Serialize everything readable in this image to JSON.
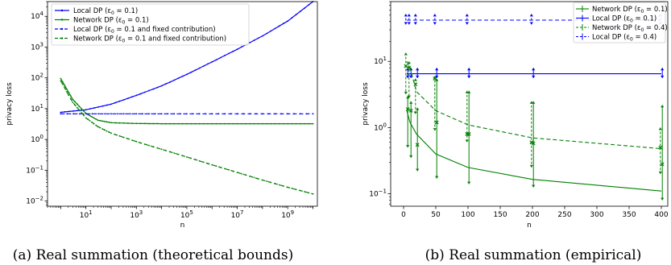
{
  "chart_data": [
    {
      "type": "line",
      "caption": "(a) Real summation (theoretical bounds)",
      "xlabel": "n",
      "ylabel": "privacy loss",
      "xscale": "log",
      "yscale": "log",
      "xlim": [
        0.3,
        15000000000.0
      ],
      "ylim": [
        0.0068,
        30000
      ],
      "xticks": [
        {
          "v": 10,
          "base": "10",
          "exp": "1"
        },
        {
          "v": 1000,
          "base": "10",
          "exp": "3"
        },
        {
          "v": 100000,
          "base": "10",
          "exp": "5"
        },
        {
          "v": 10000000,
          "base": "10",
          "exp": "7"
        },
        {
          "v": 1000000000,
          "base": "10",
          "exp": "9"
        }
      ],
      "yticks": [
        {
          "v": 0.01,
          "base": "10",
          "exp": "−2"
        },
        {
          "v": 0.1,
          "base": "10",
          "exp": "−1"
        },
        {
          "v": 1,
          "base": "10",
          "exp": "0"
        },
        {
          "v": 10,
          "base": "10",
          "exp": "1"
        },
        {
          "v": 100,
          "base": "10",
          "exp": "2"
        },
        {
          "v": 1000,
          "base": "10",
          "exp": "3"
        },
        {
          "v": 10000,
          "base": "10",
          "exp": "4"
        }
      ],
      "legend_position": "top-left",
      "series": [
        {
          "name": "Local DP (ε₀ = 0.1)",
          "color": "#0000ff",
          "style": "solid",
          "marker": "dot",
          "x": [
            1,
            10,
            100,
            1000,
            10000,
            100000,
            1000000,
            10000000,
            100000000,
            1000000000,
            10000000000
          ],
          "y": [
            7.6,
            9.2,
            14,
            27,
            55,
            130,
            330,
            850,
            2300,
            7000,
            30000
          ]
        },
        {
          "name": "Network DP (ε₀ = 0.1)",
          "color": "#008000",
          "style": "solid",
          "marker": "dot",
          "x": [
            1,
            3,
            10,
            30,
            100,
            1000,
            10000,
            100000,
            1000000,
            10000000,
            100000000,
            1000000000,
            10000000000
          ],
          "y": [
            95,
            20,
            7,
            4.2,
            3.5,
            3.3,
            3.25,
            3.25,
            3.25,
            3.25,
            3.25,
            3.25,
            3.25
          ]
        },
        {
          "name": "Local DP (ε₀ = 0.1 and fixed contribution)",
          "color": "#0000ff",
          "style": "dashed",
          "marker": "dot",
          "x": [
            1,
            10000000000
          ],
          "y": [
            6.8,
            6.8
          ]
        },
        {
          "name": "Network DP (ε₀ = 0.1 and fixed contribution)",
          "color": "#008000",
          "style": "dashed",
          "marker": "dot",
          "x": [
            1,
            3,
            10,
            30,
            100,
            1000,
            10000,
            100000,
            1000000,
            10000000,
            100000000,
            1000000000,
            10000000000
          ],
          "y": [
            80,
            16,
            5,
            2.6,
            1.6,
            0.85,
            0.48,
            0.27,
            0.15,
            0.085,
            0.048,
            0.028,
            0.017
          ]
        }
      ]
    },
    {
      "type": "line",
      "caption": "(b) Real summation (empirical)",
      "xlabel": "n",
      "ylabel": "privacy loss",
      "xscale": "linear",
      "yscale": "log",
      "xlim": [
        -20,
        410
      ],
      "ylim": [
        0.065,
        80
      ],
      "xticks": [
        "0",
        "50",
        "100",
        "150",
        "200",
        "250",
        "300",
        "350",
        "400"
      ],
      "yticks": [
        {
          "v": 0.1,
          "base": "10",
          "exp": "−1"
        },
        {
          "v": 1,
          "base": "10",
          "exp": "0"
        },
        {
          "v": 10,
          "base": "10",
          "exp": "1"
        }
      ],
      "legend_position": "upper-right",
      "series": [
        {
          "name": "Network DP (ε₀ = 0.1)",
          "color": "#008000",
          "style": "solid",
          "marker": "errorbar",
          "x": [
            5,
            10,
            20,
            50,
            100,
            200,
            400
          ],
          "y": [
            1.8,
            1.2,
            0.8,
            0.4,
            0.25,
            0.165,
            0.11
          ],
          "center": [
            1.9,
            1.8,
            0.55,
            1.2,
            0.8,
            0.58,
            0.28
          ],
          "low": [
            0.5,
            0.35,
            0.22,
            0.17,
            0.14,
            0.125,
            0.08
          ],
          "high": [
            3.0,
            2.5,
            2.0,
            5.5,
            3.6,
            2.5,
            2.2
          ]
        },
        {
          "name": "Local DP (ε₀ = 0.1)",
          "color": "#0000ff",
          "style": "solid",
          "marker": "errorbar",
          "x": [
            5,
            10,
            20,
            50,
            100,
            200,
            400
          ],
          "y": [
            6.5,
            6.5,
            6.5,
            6.5,
            6.5,
            6.5,
            6.5
          ],
          "low": [
            5.6,
            5.6,
            5.6,
            5.6,
            5.6,
            5.6,
            5.6
          ],
          "high": [
            8.0,
            8.0,
            8.0,
            8.0,
            8.0,
            8.0,
            8.0
          ]
        },
        {
          "name": "Network DP (ε₀ = 0.4)",
          "color": "#008000",
          "style": "dashed",
          "marker": "errorbar",
          "x": [
            5,
            10,
            20,
            50,
            100,
            200,
            400
          ],
          "y": [
            10,
            8,
            3.5,
            1.8,
            1.1,
            0.7,
            0.48
          ],
          "center": [
            8.5,
            8.0,
            4.5,
            5.5,
            0.8,
            0.6,
            0.5
          ],
          "low": [
            3.2,
            2.8,
            1.6,
            0.9,
            0.6,
            0.25,
            0.2
          ],
          "high": [
            13.5,
            10.0,
            5.5,
            6.0,
            3.6,
            2.5,
            1.0
          ]
        },
        {
          "name": "Local DP (ε₀ = 0.4)",
          "color": "#0000ff",
          "style": "dashed",
          "marker": "errorbar",
          "x": [
            5,
            10,
            20,
            50,
            100,
            200,
            400
          ],
          "y": [
            42,
            42,
            42,
            42,
            42,
            42,
            42
          ],
          "low": [
            36,
            36,
            36,
            36,
            36,
            36,
            36
          ],
          "high": [
            52,
            52,
            52,
            52,
            52,
            52,
            52
          ]
        }
      ]
    }
  ]
}
